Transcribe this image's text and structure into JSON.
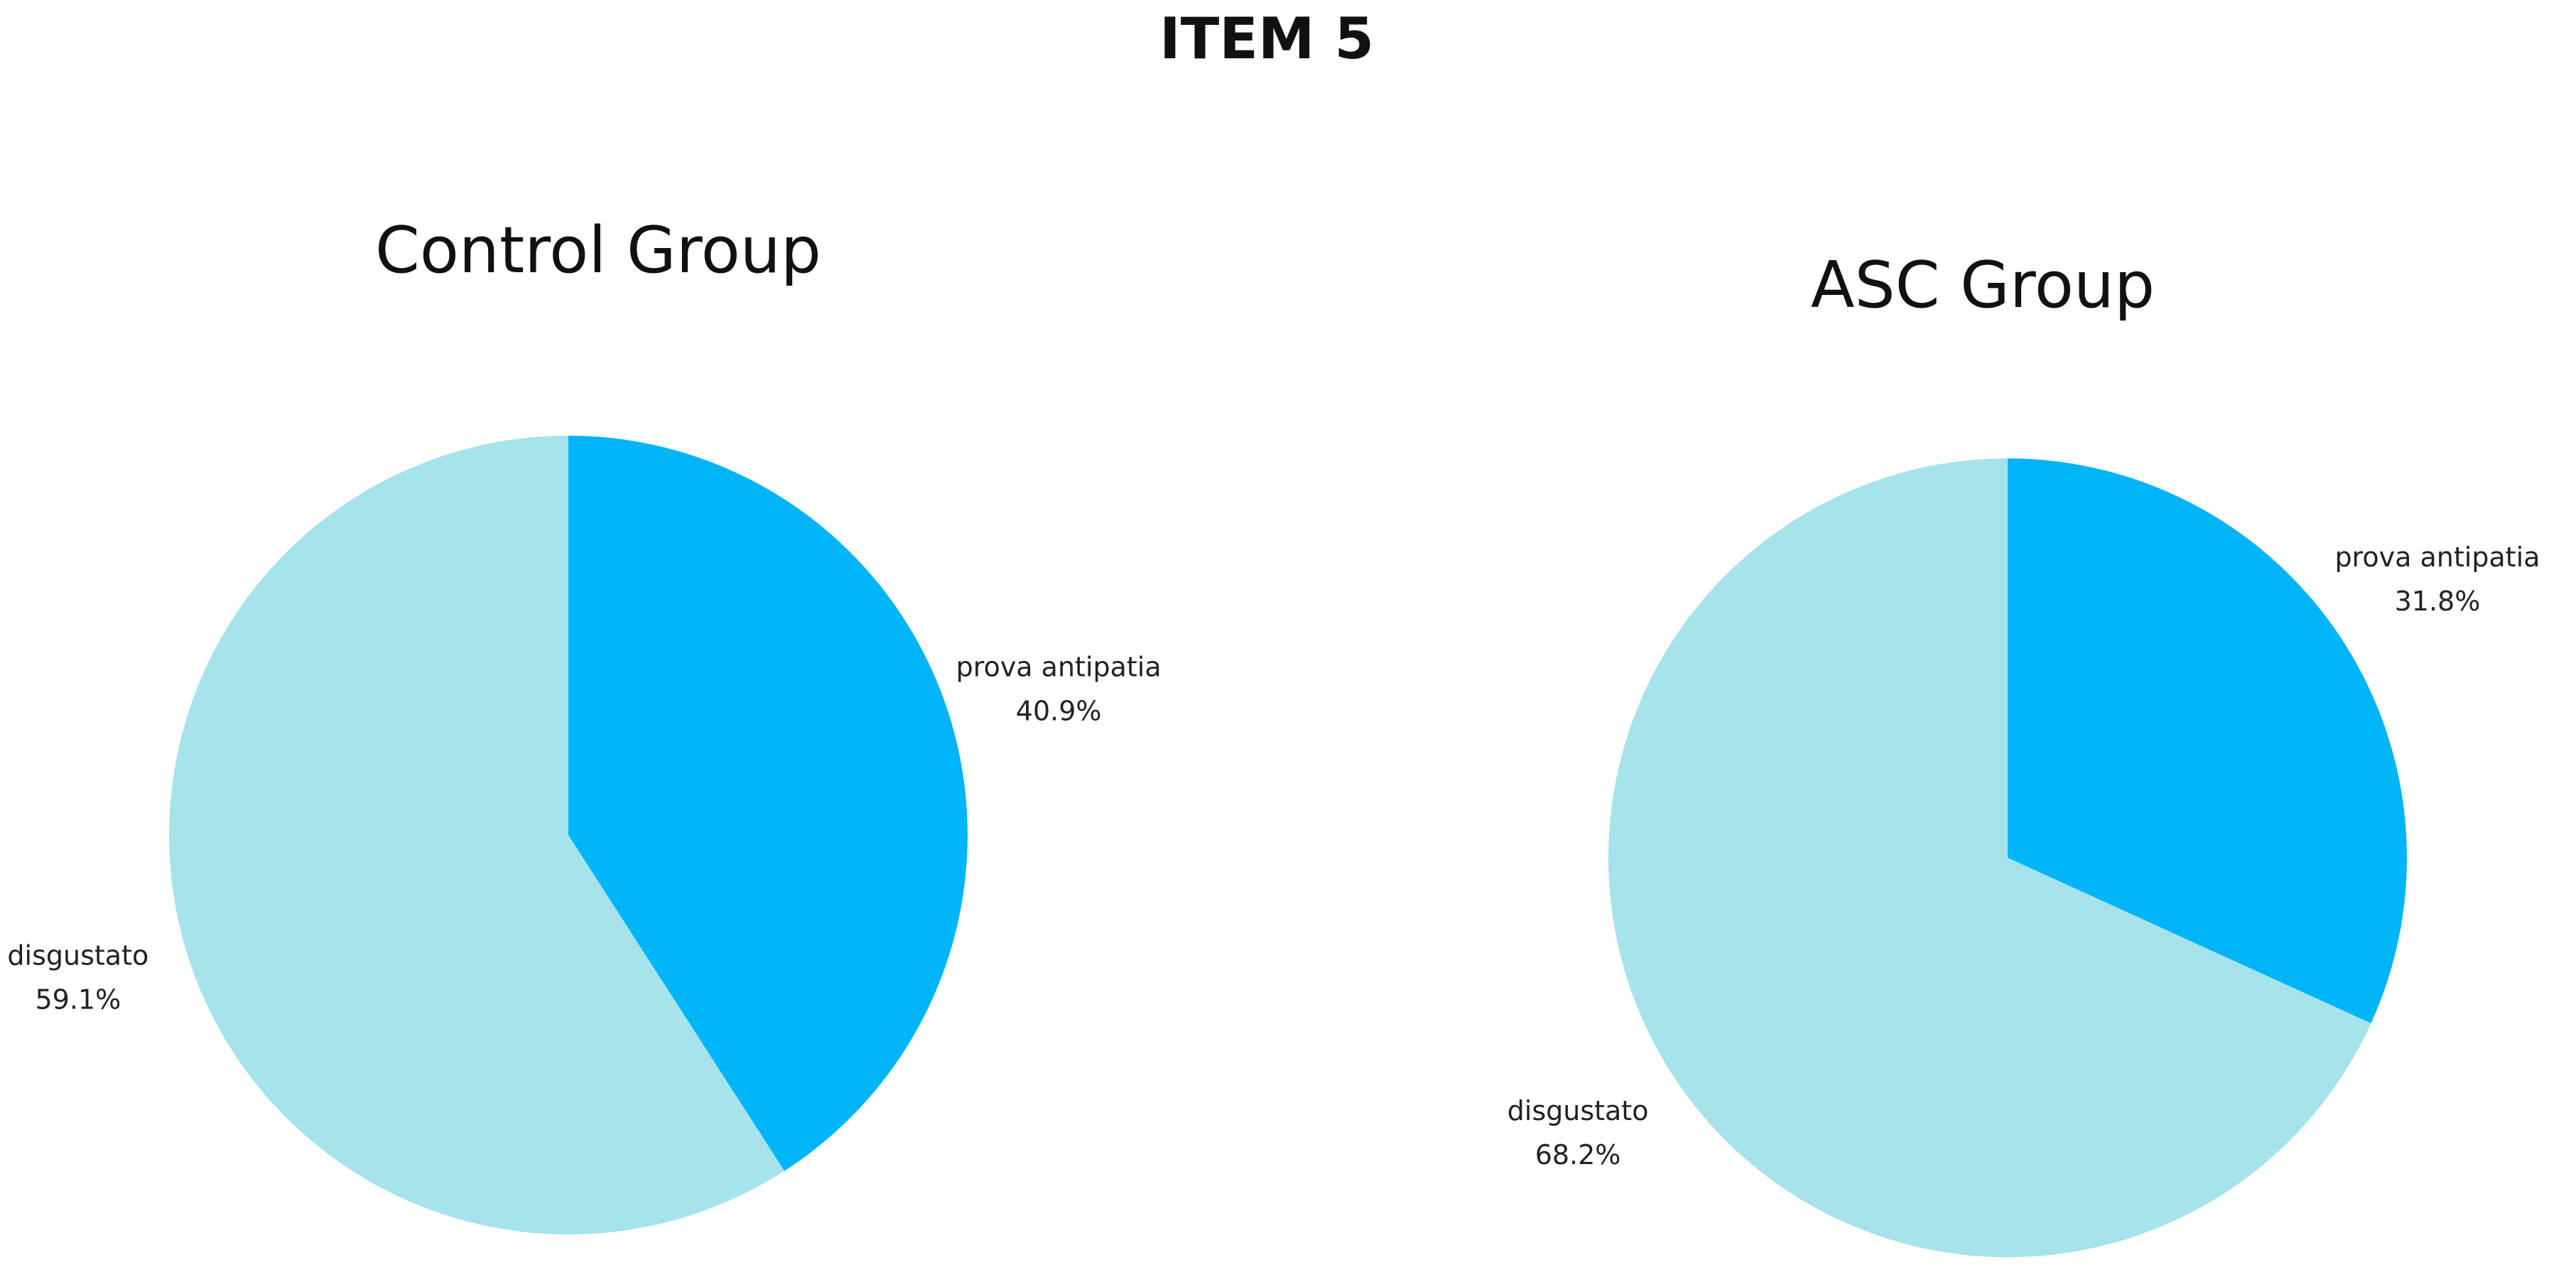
{
  "title": "ITEM 5",
  "chart_data": [
    {
      "type": "pie",
      "title": "Control Group",
      "categories": [
        "prova antipatia",
        "disgustato"
      ],
      "values": [
        40.9,
        59.1
      ],
      "value_labels": [
        "40.9%",
        "59.1%"
      ],
      "colors": [
        "#00b4f8",
        "#a6e3ea"
      ]
    },
    {
      "type": "pie",
      "title": "ASC Group",
      "categories": [
        "prova antipatia",
        "disgustato"
      ],
      "values": [
        31.8,
        68.2
      ],
      "value_labels": [
        "31.8%",
        "68.2%"
      ],
      "colors": [
        "#00b4f8",
        "#a6e3ea"
      ]
    }
  ]
}
